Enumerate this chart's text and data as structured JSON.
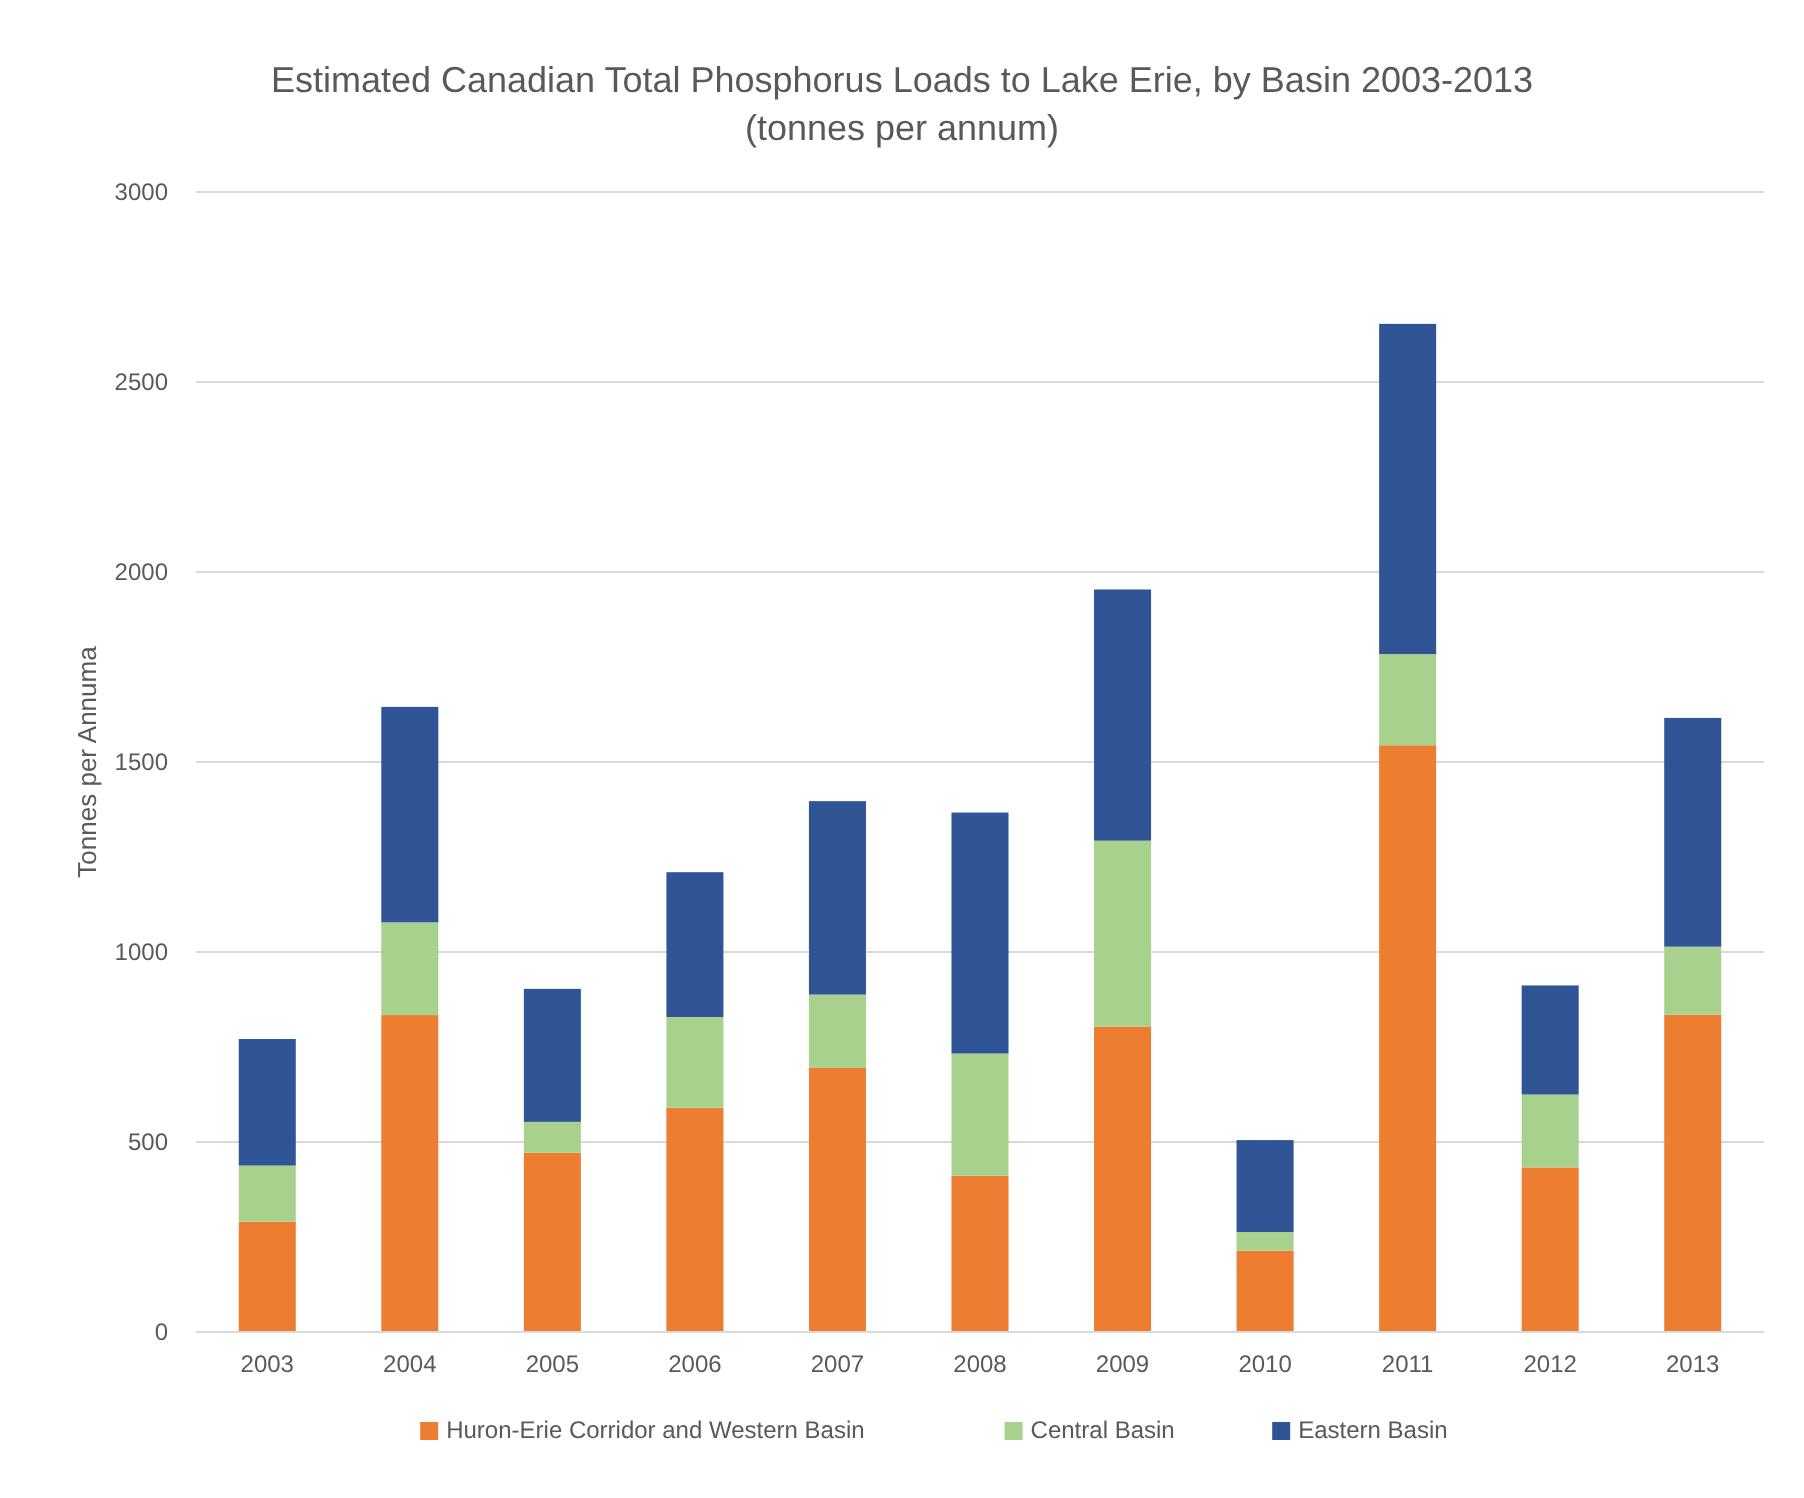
{
  "chart_data": {
    "type": "bar",
    "title": "Estimated Canadian Total Phosphorus Loads to Lake Erie, by Basin 2003-2013",
    "subtitle": "(tonnes per annum)",
    "ylabel": "Tonnes per Annuma",
    "categories": [
      "2003",
      "2004",
      "2005",
      "2006",
      "2007",
      "2008",
      "2009",
      "2010",
      "2011",
      "2012",
      "2013"
    ],
    "stacked": true,
    "ylim": [
      0,
      3000
    ],
    "yticks": [
      0,
      500,
      1000,
      1500,
      2000,
      2500,
      3000
    ],
    "grid": "y",
    "legend": "bottom",
    "series": [
      {
        "name": "Huron-Erie Corridor and Western Basin",
        "color": "#ed7d31",
        "values": [
          290,
          834,
          472,
          590,
          695,
          411,
          804,
          214,
          1544,
          433,
          835
        ]
      },
      {
        "name": "Central Basin",
        "color": "#a9d18e",
        "values": [
          148,
          244,
          81,
          239,
          193,
          322,
          489,
          49,
          240,
          192,
          179
        ]
      },
      {
        "name": "Eastern Basin",
        "color": "#2f5597",
        "values": [
          333,
          567,
          350,
          381,
          509,
          634,
          661,
          242,
          869,
          287,
          602
        ]
      }
    ]
  }
}
